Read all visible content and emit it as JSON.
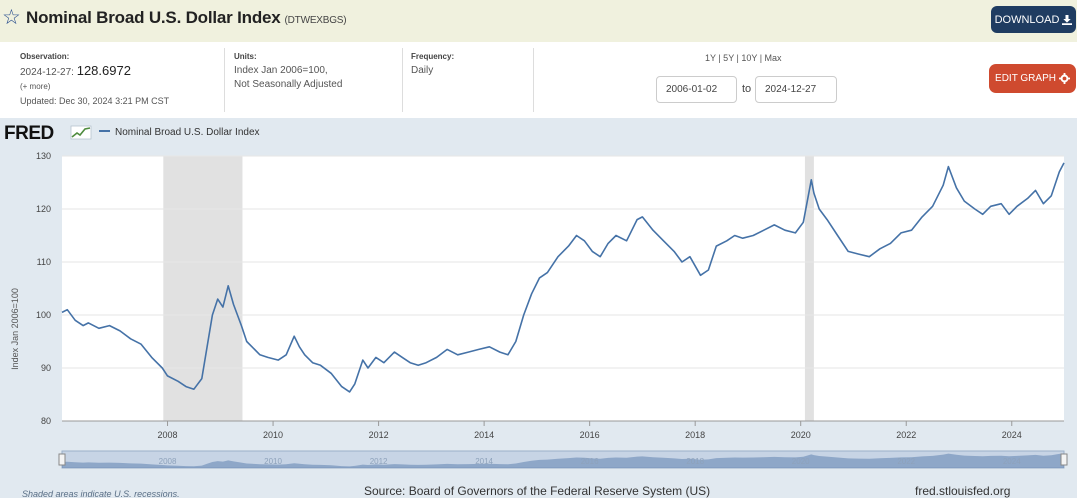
{
  "header": {
    "title": "Nominal Broad U.S. Dollar Index",
    "series_id": "(DTWEXBGS)",
    "download_label": "DOWNLOAD",
    "star_icon": "star-outline-icon"
  },
  "info": {
    "observation_label": "Observation:",
    "observation_date": "2024-12-27:",
    "observation_value": "128.6972",
    "more_label": "(+ more)",
    "updated": "Updated: Dec 30, 2024 3:21 PM CST",
    "units_label": "Units:",
    "units_line1": "Index Jan 2006=100,",
    "units_line2": "Not Seasonally Adjusted",
    "frequency_label": "Frequency:",
    "frequency_value": "Daily",
    "range_options": "1Y | 5Y | 10Y | Max",
    "start_date": "2006-01-02",
    "to_label": "to",
    "end_date": "2024-12-27",
    "edit_label": "EDIT GRAPH"
  },
  "chart_footer": {
    "recession_note": "Shaded areas indicate U.S. recessions.",
    "source": "Source: Board of Governors of the Federal Reserve System (US)",
    "site": "fred.stlouisfed.org",
    "logo": "FRED"
  },
  "colors": {
    "line": "#4572a7",
    "accent_download": "#1f3c61",
    "accent_edit": "#cf4a2f",
    "recession": "#e1e1e1"
  },
  "chart_data": {
    "type": "line",
    "title": "",
    "xlabel": "",
    "ylabel": "Index Jan 2006=100",
    "ylim": [
      80,
      130
    ],
    "xlim": [
      2006.0,
      2024.99
    ],
    "yticks": [
      "80",
      "90",
      "100",
      "110",
      "120",
      "130"
    ],
    "xticks": [
      "2008",
      "2010",
      "2012",
      "2014",
      "2016",
      "2018",
      "2020",
      "2022",
      "2024"
    ],
    "grid": true,
    "legend": "top-left",
    "recessions": [
      [
        2007.92,
        2009.42
      ],
      [
        2020.08,
        2020.25
      ]
    ],
    "series": [
      {
        "name": "Nominal Broad U.S. Dollar Index",
        "x": [
          2006.0,
          2006.1,
          2006.25,
          2006.4,
          2006.5,
          2006.7,
          2006.9,
          2007.1,
          2007.3,
          2007.5,
          2007.7,
          2007.9,
          2008.0,
          2008.2,
          2008.35,
          2008.5,
          2008.65,
          2008.75,
          2008.85,
          2008.95,
          2009.05,
          2009.15,
          2009.25,
          2009.4,
          2009.5,
          2009.6,
          2009.75,
          2009.9,
          2010.1,
          2010.25,
          2010.4,
          2010.5,
          2010.6,
          2010.75,
          2010.9,
          2011.1,
          2011.3,
          2011.45,
          2011.55,
          2011.7,
          2011.8,
          2011.95,
          2012.1,
          2012.3,
          2012.45,
          2012.6,
          2012.75,
          2012.9,
          2013.1,
          2013.3,
          2013.5,
          2013.7,
          2013.9,
          2014.1,
          2014.3,
          2014.45,
          2014.6,
          2014.75,
          2014.9,
          2015.05,
          2015.2,
          2015.4,
          2015.6,
          2015.75,
          2015.9,
          2016.05,
          2016.2,
          2016.35,
          2016.5,
          2016.7,
          2016.9,
          2017.0,
          2017.2,
          2017.4,
          2017.6,
          2017.75,
          2017.9,
          2018.1,
          2018.25,
          2018.4,
          2018.6,
          2018.75,
          2018.9,
          2019.1,
          2019.3,
          2019.5,
          2019.7,
          2019.9,
          2020.05,
          2020.2,
          2020.25,
          2020.35,
          2020.5,
          2020.7,
          2020.9,
          2021.1,
          2021.3,
          2021.5,
          2021.7,
          2021.9,
          2022.1,
          2022.3,
          2022.5,
          2022.7,
          2022.8,
          2022.95,
          2023.1,
          2023.3,
          2023.45,
          2023.6,
          2023.8,
          2023.95,
          2024.1,
          2024.3,
          2024.45,
          2024.6,
          2024.75,
          2024.9,
          2024.99
        ],
        "values": [
          100.5,
          101.0,
          99.0,
          98.0,
          98.5,
          97.5,
          98.0,
          97.0,
          95.5,
          94.5,
          92.0,
          90.0,
          88.5,
          87.5,
          86.5,
          86.0,
          88.0,
          94.0,
          100.0,
          103.0,
          101.5,
          105.5,
          102.0,
          98.0,
          95.0,
          94.0,
          92.5,
          92.0,
          91.5,
          92.5,
          96.0,
          94.0,
          92.5,
          91.0,
          90.5,
          89.0,
          86.5,
          85.5,
          87.0,
          91.5,
          90.0,
          92.0,
          91.0,
          93.0,
          92.0,
          91.0,
          90.5,
          91.0,
          92.0,
          93.5,
          92.5,
          93.0,
          93.5,
          94.0,
          93.0,
          92.5,
          95.0,
          100.0,
          104.0,
          107.0,
          108.0,
          111.0,
          113.0,
          115.0,
          114.0,
          112.0,
          111.0,
          113.5,
          115.0,
          114.0,
          118.0,
          118.5,
          116.0,
          114.0,
          112.0,
          110.0,
          111.0,
          107.5,
          108.5,
          113.0,
          114.0,
          115.0,
          114.5,
          115.0,
          116.0,
          117.0,
          116.0,
          115.5,
          117.5,
          125.5,
          123.0,
          120.0,
          118.0,
          115.0,
          112.0,
          111.5,
          111.0,
          112.5,
          113.5,
          115.5,
          116.0,
          118.5,
          120.5,
          124.5,
          128.0,
          124.0,
          121.5,
          120.0,
          119.0,
          120.5,
          121.0,
          119.0,
          120.5,
          122.0,
          123.5,
          121.0,
          122.5,
          127.0,
          128.7
        ]
      }
    ]
  }
}
